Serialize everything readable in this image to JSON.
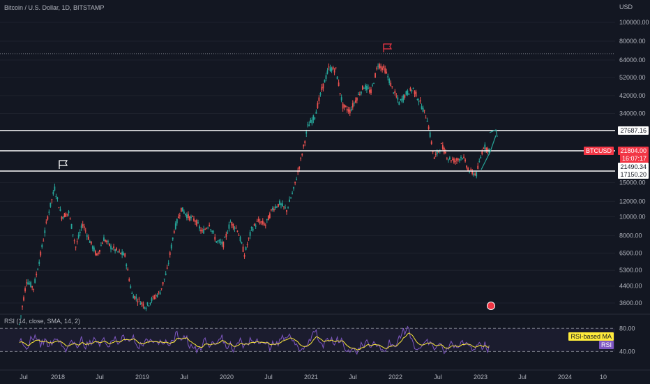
{
  "header": {
    "title": "Bitcoin / U.S. Dollar, 1D, BITSTAMP",
    "currency": "USD"
  },
  "rsi": {
    "title": "RSI (14, close, SMA, 14, 2)",
    "ma_label": "RSI-based MA",
    "rsi_label": "RSI",
    "levels": [
      80.0,
      40.0
    ],
    "level_labels": [
      "80.00",
      "40.00"
    ]
  },
  "price_tags": {
    "resistance": "27687.16",
    "btc_symbol": "BTCUSD",
    "btc_price": "21804.00",
    "btc_countdown": "16:07:17",
    "support1": "21490.34",
    "support2": "17150.20"
  },
  "colors": {
    "background": "#131722",
    "up": "#26a69a",
    "down": "#ef5350",
    "rsi": "#7e57c2",
    "rsi_ma": "#ffeb3b",
    "lines": "#ffffff",
    "flag_top": "#f23645",
    "flag_left": "#ffffff",
    "arrow": "#26a69a"
  },
  "chart_data": {
    "type": "candlestick",
    "title": "Bitcoin / U.S. Dollar, 1D, BITSTAMP",
    "yscale": "log",
    "y_ticks": [
      "100000.00",
      "80000.00",
      "64000.00",
      "52000.00",
      "42000.00",
      "34000.00",
      "15000.00",
      "12000.00",
      "10000.00",
      "8000.00",
      "6500.00",
      "5300.00",
      "4400.00",
      "3600.00"
    ],
    "x_ticks": [
      "Jul",
      "2018",
      "Jul",
      "2019",
      "Jul",
      "2020",
      "Jul",
      "2021",
      "Jul",
      "2022",
      "Jul",
      "2023",
      "Jul",
      "2024",
      "10"
    ],
    "horizontal_lines": [
      27687.16,
      21804.0,
      21490.34,
      17150.2
    ],
    "dotted_line": 69000,
    "series": [
      {
        "dates": [
          "2017-07",
          "2017-08",
          "2017-09",
          "2017-10",
          "2017-11",
          "2017-12",
          "2018-01",
          "2018-02",
          "2018-03",
          "2018-04",
          "2018-05",
          "2018-06",
          "2018-07",
          "2018-08",
          "2018-09",
          "2018-10",
          "2018-11",
          "2018-12",
          "2019-01",
          "2019-02",
          "2019-03",
          "2019-04",
          "2019-05",
          "2019-06",
          "2019-07",
          "2019-08",
          "2019-09",
          "2019-10",
          "2019-11",
          "2019-12",
          "2020-01",
          "2020-02",
          "2020-03",
          "2020-04",
          "2020-05",
          "2020-06",
          "2020-07",
          "2020-08",
          "2020-09",
          "2020-10",
          "2020-11",
          "2020-12",
          "2021-01",
          "2021-02",
          "2021-03",
          "2021-04",
          "2021-05",
          "2021-06",
          "2021-07",
          "2021-08",
          "2021-09",
          "2021-10",
          "2021-11",
          "2021-12",
          "2022-01",
          "2022-02",
          "2022-03",
          "2022-04",
          "2022-05",
          "2022-06",
          "2022-07",
          "2022-08",
          "2022-09",
          "2022-10",
          "2022-11",
          "2022-12",
          "2023-01",
          "2023-02"
        ],
        "close": [
          2800,
          4700,
          4300,
          6400,
          10000,
          14000,
          10000,
          10500,
          7000,
          9200,
          7500,
          6300,
          7700,
          7000,
          6600,
          6300,
          4000,
          3700,
          3450,
          3800,
          4100,
          5300,
          8500,
          11000,
          10000,
          9600,
          8300,
          9200,
          7500,
          7200,
          9400,
          8600,
          6400,
          8600,
          9500,
          9100,
          11000,
          11700,
          10800,
          13800,
          19500,
          29000,
          33000,
          45000,
          58000,
          57000,
          37000,
          35000,
          41000,
          47000,
          43800,
          61000,
          57000,
          46000,
          38500,
          43000,
          45500,
          38500,
          31800,
          19900,
          23300,
          20000,
          19400,
          20500,
          17100,
          16550,
          23100,
          21804
        ]
      }
    ]
  }
}
